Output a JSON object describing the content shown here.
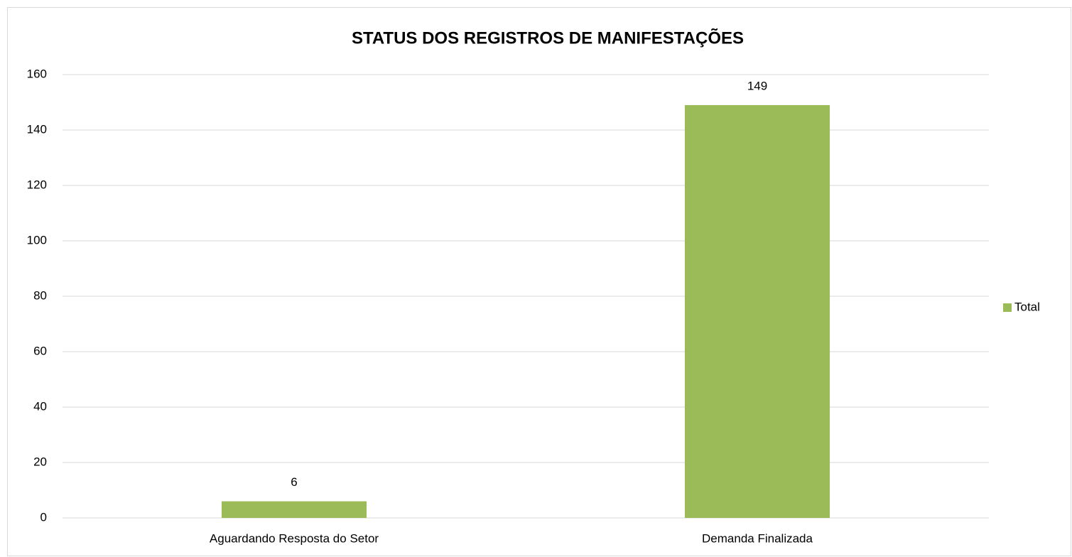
{
  "chart_data": {
    "type": "bar",
    "title": "STATUS DOS REGISTROS DE MANIFESTAÇÕES",
    "categories": [
      "Aguardando Resposta do Setor",
      "Demanda Finalizada"
    ],
    "series": [
      {
        "name": "Total",
        "color": "#9bbb59",
        "values": [
          6,
          149
        ]
      }
    ],
    "ylim": [
      0,
      160
    ],
    "yticks": [
      0,
      20,
      40,
      60,
      80,
      100,
      120,
      140,
      160
    ],
    "grid": true,
    "legend": "right",
    "data_labels": true
  }
}
